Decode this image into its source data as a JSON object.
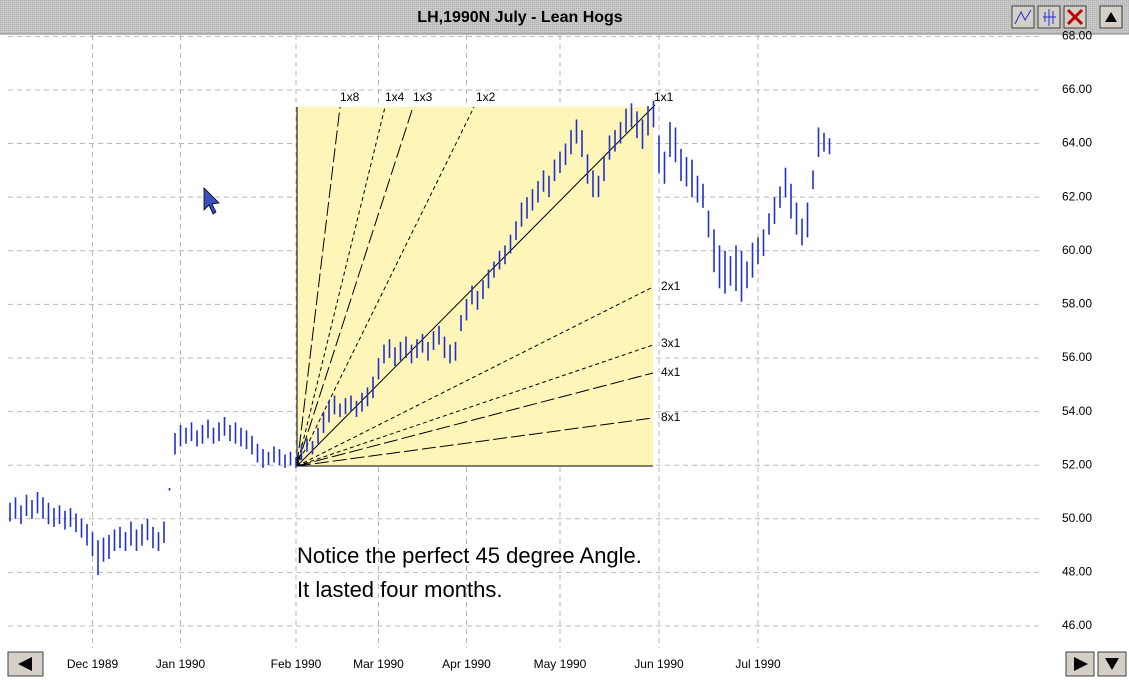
{
  "title": "LH,1990N  July - Lean Hogs",
  "chart_data": {
    "type": "bar-range",
    "color": "#1f2fd0",
    "categories": [
      null,
      null,
      null,
      null,
      null,
      null,
      null,
      null,
      null,
      null,
      null,
      null,
      null,
      null,
      null,
      "Dec 1989",
      null,
      null,
      null,
      null,
      null,
      null,
      null,
      null,
      null,
      null,
      null,
      null,
      null,
      null,
      null,
      "Jan 1990",
      null,
      null,
      null,
      null,
      null,
      null,
      null,
      null,
      null,
      null,
      null,
      null,
      null,
      null,
      null,
      null,
      null,
      null,
      null,
      null,
      "Feb 1990",
      null,
      null,
      null,
      null,
      null,
      null,
      null,
      null,
      null,
      null,
      null,
      null,
      null,
      null,
      "Mar 1990",
      null,
      null,
      null,
      null,
      null,
      null,
      null,
      null,
      null,
      null,
      null,
      null,
      null,
      null,
      null,
      "Apr 1990",
      null,
      null,
      null,
      null,
      null,
      null,
      null,
      null,
      null,
      null,
      null,
      null,
      null,
      null,
      null,
      null,
      "May 1990",
      null,
      null,
      null,
      null,
      null,
      null,
      null,
      null,
      null,
      null,
      null,
      null,
      null,
      null,
      null,
      null,
      null,
      "Jun 1990",
      null,
      null,
      null,
      null,
      null,
      null,
      null,
      null,
      null,
      null,
      null,
      null,
      null,
      null,
      null,
      null,
      null,
      "Jul 1990",
      null,
      null,
      null,
      null,
      null,
      null,
      null,
      null,
      null,
      null,
      null,
      null,
      null
    ],
    "high": [
      50.6,
      50.8,
      50.5,
      50.9,
      50.7,
      51.0,
      50.8,
      50.6,
      50.4,
      50.5,
      50.3,
      50.4,
      50.2,
      50.0,
      49.8,
      49.5,
      49.2,
      49.3,
      49.4,
      49.6,
      49.7,
      49.5,
      49.9,
      49.6,
      49.8,
      50.0,
      49.7,
      49.5,
      49.9,
      51.15,
      53.2,
      53.5,
      53.4,
      53.6,
      53.3,
      53.5,
      53.7,
      53.4,
      53.6,
      53.8,
      53.5,
      53.6,
      53.4,
      53.3,
      53.1,
      52.8,
      52.6,
      52.5,
      52.7,
      52.6,
      52.4,
      52.5,
      52.3,
      52.8,
      53.0,
      52.9,
      53.4,
      54.0,
      54.4,
      54.6,
      54.3,
      54.5,
      54.6,
      54.4,
      54.7,
      54.9,
      55.3,
      56.0,
      56.5,
      56.7,
      56.4,
      56.6,
      56.8,
      56.5,
      56.7,
      56.9,
      56.6,
      57.0,
      57.2,
      56.8,
      56.5,
      56.6,
      57.6,
      58.2,
      58.7,
      58.5,
      58.9,
      59.3,
      59.6,
      60.0,
      60.2,
      60.6,
      61.1,
      61.8,
      62.0,
      62.3,
      62.6,
      63.0,
      62.8,
      63.4,
      63.7,
      64.0,
      64.5,
      64.9,
      64.5,
      63.6,
      63.0,
      62.8,
      63.5,
      64.3,
      64.5,
      64.8,
      65.3,
      65.5,
      65.2,
      64.9,
      65.4,
      65.6,
      64.3,
      63.7,
      64.8,
      64.6,
      63.8,
      63.5,
      63.4,
      62.8,
      62.5,
      61.5,
      60.8,
      60.2,
      60.0,
      59.8,
      60.2,
      60.0,
      59.6,
      60.3,
      60.5,
      60.8,
      61.4,
      62.0,
      62.4,
      63.1,
      62.5,
      61.8,
      61.2,
      61.8,
      63.0,
      64.6,
      64.4,
      64.2
    ],
    "low": [
      49.9,
      50.0,
      49.8,
      50.1,
      50.0,
      50.2,
      50.0,
      49.8,
      49.7,
      49.8,
      49.6,
      49.7,
      49.5,
      49.3,
      49.0,
      48.6,
      47.9,
      48.4,
      48.5,
      48.8,
      48.9,
      48.8,
      49.0,
      48.8,
      49.0,
      49.2,
      48.9,
      48.8,
      49.1,
      51.05,
      52.4,
      52.7,
      52.8,
      52.9,
      52.7,
      52.8,
      53.0,
      52.8,
      52.9,
      53.1,
      52.9,
      52.8,
      52.7,
      52.6,
      52.4,
      52.1,
      51.9,
      52.0,
      52.1,
      52.0,
      51.9,
      52.0,
      51.9,
      52.2,
      52.5,
      52.4,
      52.8,
      53.2,
      53.6,
      53.9,
      53.8,
      53.9,
      54.0,
      53.8,
      54.0,
      54.2,
      54.5,
      55.2,
      55.8,
      56.0,
      55.7,
      55.9,
      56.0,
      55.8,
      56.0,
      56.2,
      55.9,
      56.3,
      56.5,
      56.0,
      55.8,
      55.9,
      57.0,
      57.4,
      58.0,
      57.8,
      58.2,
      58.6,
      59.0,
      59.3,
      59.5,
      59.9,
      60.4,
      60.9,
      61.2,
      61.5,
      61.8,
      62.2,
      62.0,
      62.6,
      62.9,
      63.2,
      63.6,
      64.0,
      63.5,
      62.5,
      62.0,
      62.0,
      62.6,
      63.4,
      63.7,
      64.0,
      64.4,
      64.6,
      64.2,
      63.8,
      64.3,
      64.6,
      62.9,
      62.5,
      63.5,
      63.3,
      62.6,
      62.4,
      62.0,
      61.8,
      61.6,
      60.5,
      59.2,
      58.6,
      58.4,
      58.7,
      58.5,
      58.1,
      58.6,
      59.0,
      59.5,
      59.8,
      60.6,
      61.0,
      61.6,
      62.0,
      61.2,
      60.6,
      60.2,
      60.5,
      62.3,
      63.5,
      63.7,
      63.6
    ],
    "ylim": [
      45.18,
      68.05
    ],
    "yticks": [
      {
        "value": 46,
        "label": "46.00"
      },
      {
        "value": 48,
        "label": "48.00"
      },
      {
        "value": 50,
        "label": "50.00"
      },
      {
        "value": 52,
        "label": "52.00"
      },
      {
        "value": 54,
        "label": "54.00"
      },
      {
        "value": 56,
        "label": "56.00"
      },
      {
        "value": 58,
        "label": "58.00"
      },
      {
        "value": 60,
        "label": "60.00"
      },
      {
        "value": 62,
        "label": "62.00"
      },
      {
        "value": 64,
        "label": "64.00"
      },
      {
        "value": 66,
        "label": "66.00"
      },
      {
        "value": 68,
        "label": "68.00"
      }
    ],
    "grid": true,
    "fan_labels": [
      "1x8",
      "1x4",
      "1x3",
      "1x2",
      "1x1",
      "2x1",
      "3x1",
      "4x1",
      "8x1"
    ],
    "annotations": [
      "Notice the perfect 45 degree Angle.",
      "It lasted four months."
    ]
  }
}
